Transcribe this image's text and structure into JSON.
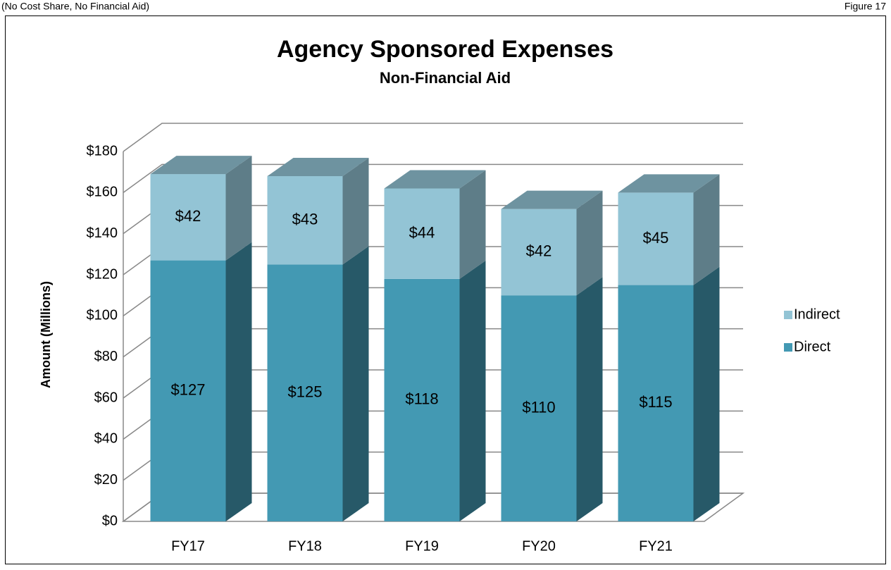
{
  "header": {
    "left": "(No Cost Share, No Financial Aid)",
    "right": "Figure 17"
  },
  "chart_data": {
    "type": "bar3d_stacked",
    "title": "Agency Sponsored Expenses",
    "subtitle": "Non-Financial Aid",
    "ylabel": "Amount (Millions)",
    "categories": [
      "FY17",
      "FY18",
      "FY19",
      "FY20",
      "FY21"
    ],
    "series": [
      {
        "name": "Direct",
        "color": "#4399b3",
        "values": [
          127,
          125,
          118,
          110,
          115
        ],
        "value_labels": [
          "$127",
          "$125",
          "$118",
          "$110",
          "$115"
        ]
      },
      {
        "name": "Indirect",
        "color": "#93c4d5",
        "values": [
          42,
          43,
          44,
          42,
          45
        ],
        "value_labels": [
          "$42",
          "$43",
          "$44",
          "$42",
          "$45"
        ]
      }
    ],
    "ylim": [
      0,
      180
    ],
    "yticks": [
      {
        "value": 0,
        "label": "$0"
      },
      {
        "value": 20,
        "label": "$20"
      },
      {
        "value": 40,
        "label": "$40"
      },
      {
        "value": 60,
        "label": "$60"
      },
      {
        "value": 80,
        "label": "$80"
      },
      {
        "value": 100,
        "label": "$100"
      },
      {
        "value": 120,
        "label": "$120"
      },
      {
        "value": 140,
        "label": "$140"
      },
      {
        "value": 160,
        "label": "$160"
      },
      {
        "value": 180,
        "label": "$180"
      }
    ],
    "grid": true,
    "legend": "right"
  }
}
